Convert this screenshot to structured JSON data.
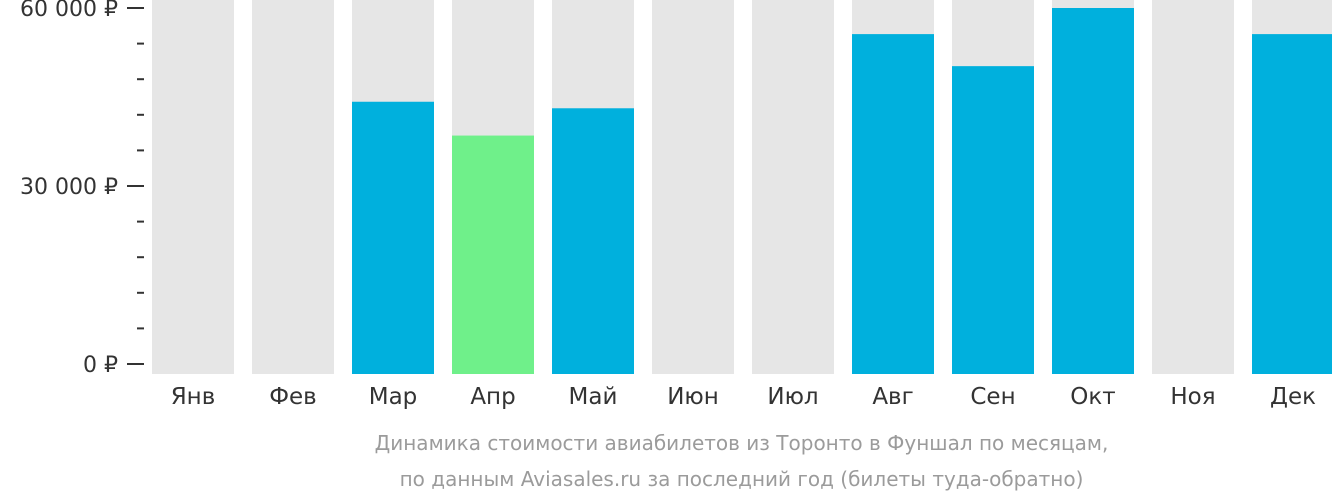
{
  "chart_data": {
    "type": "bar",
    "categories": [
      "Янв",
      "Фев",
      "Мар",
      "Апр",
      "Май",
      "Июн",
      "Июл",
      "Авг",
      "Сен",
      "Окт",
      "Ноя",
      "Дек"
    ],
    "values": [
      null,
      null,
      44200,
      38500,
      43100,
      null,
      null,
      55600,
      50200,
      60000,
      null,
      55600
    ],
    "highlight_index": 3,
    "ylim": [
      0,
      60000
    ],
    "y_ticks": [
      0,
      30000,
      60000
    ],
    "y_tick_labels": [
      "0 ₽",
      "30 000 ₽",
      "60 000 ₽"
    ],
    "grid": false,
    "xlabel": "",
    "ylabel": ""
  },
  "caption": {
    "line1": "Динамика стоимости авиабилетов из Торонто в Фуншал по месяцам,",
    "line2": "по данным Aviasales.ru за последний год (билеты туда-обратно)"
  },
  "colors": {
    "bar": "#00b0dd",
    "highlight": "#6ff08a",
    "background_bar": "#e6e6e6",
    "axis": "#333333",
    "caption": "#9b9b9b"
  }
}
